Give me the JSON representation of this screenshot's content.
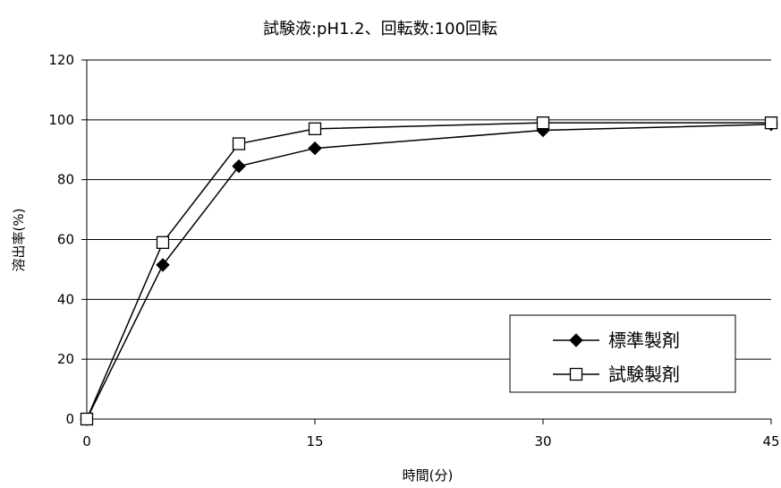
{
  "chart_data": {
    "type": "line",
    "title": "試験液:pH1.2、回転数:100回転",
    "xlabel": "時間(分)",
    "ylabel": "溶出率(%)",
    "x": [
      0,
      5,
      10,
      15,
      30,
      45
    ],
    "x_tick_labels": [
      "0",
      "15",
      "30",
      "45"
    ],
    "x_axis_note": "ticks are unevenly spaced: 0 to 15 occupies one third of the axis, 15 to 30 and 30 to 45 one third each",
    "ylim": [
      0,
      120
    ],
    "y_ticks": [
      0,
      20,
      40,
      60,
      80,
      100,
      120
    ],
    "grid": "horizontal",
    "legend_position": "bottom-right",
    "series": [
      {
        "name": "標準製剤",
        "marker": "filled-diamond",
        "color": "#000000",
        "values": [
          0,
          51.5,
          84.5,
          90.5,
          96.5,
          98.5
        ]
      },
      {
        "name": "試験製剤",
        "marker": "open-square",
        "color": "#000000",
        "values": [
          0,
          59,
          92,
          97,
          99,
          99
        ]
      }
    ]
  }
}
